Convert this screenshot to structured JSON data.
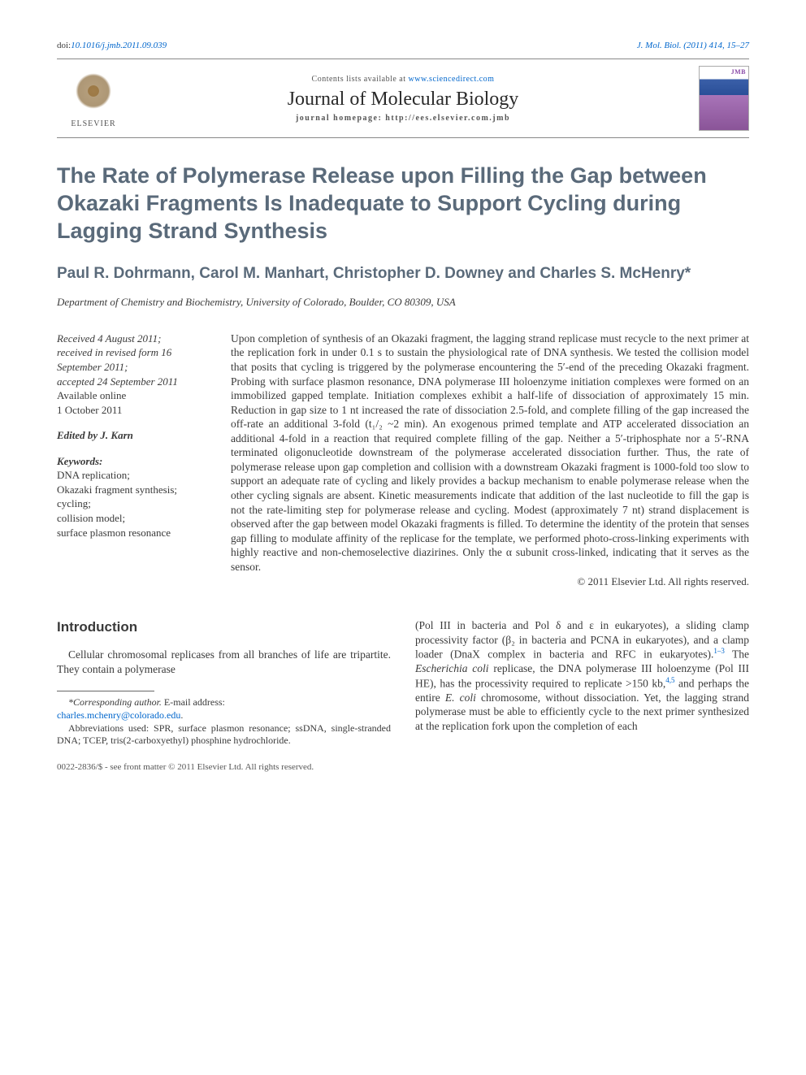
{
  "header": {
    "doi_prefix": "doi:",
    "doi": "10.1016/j.jmb.2011.09.039",
    "citation": "J. Mol. Biol. (2011) 414, 15–27",
    "contents_prefix": "Contents lists available at ",
    "sciencedirect": "www.sciencedirect.com",
    "journal_name": "Journal of Molecular Biology",
    "homepage_label": "journal homepage: http://ees.elsevier.com.jmb",
    "elsevier_label": "ELSEVIER",
    "jmb_label": "JMB"
  },
  "article": {
    "title": "The Rate of Polymerase Release upon Filling the Gap between Okazaki Fragments Is Inadequate to Support Cycling during Lagging Strand Synthesis",
    "authors": "Paul R. Dohrmann, Carol M. Manhart, Christopher D. Downey and Charles S. McHenry*",
    "affiliation": "Department of Chemistry and Biochemistry, University of Colorado, Boulder, CO 80309, USA"
  },
  "meta": {
    "received": "Received 4 August 2011;",
    "revised": "received in revised form 16 September 2011;",
    "accepted": "accepted 24 September 2011",
    "online_label": "Available online",
    "online_date": "1 October 2011",
    "edited_by": "Edited by J. Karn",
    "keywords_label": "Keywords:",
    "keywords": "DNA replication;\nOkazaki fragment synthesis;\ncycling;\ncollision model;\nsurface plasmon resonance"
  },
  "abstract": {
    "text": "Upon completion of synthesis of an Okazaki fragment, the lagging strand replicase must recycle to the next primer at the replication fork in under 0.1 s to sustain the physiological rate of DNA synthesis. We tested the collision model that posits that cycling is triggered by the polymerase encountering the 5′-end of the preceding Okazaki fragment. Probing with surface plasmon resonance, DNA polymerase III holoenzyme initiation complexes were formed on an immobilized gapped template. Initiation complexes exhibit a half-life of dissociation of approximately 15 min. Reduction in gap size to 1 nt increased the rate of dissociation 2.5-fold, and complete filling of the gap increased the off-rate an additional 3-fold (t₁/₂ ~2 min). An exogenous primed template and ATP accelerated dissociation an additional 4-fold in a reaction that required complete filling of the gap. Neither a 5′-triphosphate nor a 5′-RNA terminated oligonucleotide downstream of the polymerase accelerated dissociation further. Thus, the rate of polymerase release upon gap completion and collision with a downstream Okazaki fragment is 1000-fold too slow to support an adequate rate of cycling and likely provides a backup mechanism to enable polymerase release when the other cycling signals are absent. Kinetic measurements indicate that addition of the last nucleotide to fill the gap is not the rate-limiting step for polymerase release and cycling. Modest (approximately 7 nt) strand displacement is observed after the gap between model Okazaki fragments is filled. To determine the identity of the protein that senses gap filling to modulate affinity of the replicase for the template, we performed photo-cross-linking experiments with highly reactive and non-chemoselective diazirines. Only the α subunit cross-linked, indicating that it serves as the sensor.",
    "copyright": "© 2011 Elsevier Ltd. All rights reserved."
  },
  "intro": {
    "heading": "Introduction",
    "left_para": "Cellular chromosomal replicases from all branches of life are tripartite. They contain a polymerase",
    "right_para_1": "(Pol III in bacteria and Pol δ and ε in eukaryotes), a sliding clamp processivity factor (β₂ in bacteria and PCNA in eukaryotes), and a clamp loader (DnaX complex in bacteria and RFC in eukaryotes).",
    "right_cite_1": "1–3",
    "right_para_2": " The Escherichia coli replicase, the DNA polymerase III holoenzyme (Pol III HE), has the processivity required to replicate >150 kb,",
    "right_cite_2": "4,5",
    "right_para_3": " and perhaps the entire E. coli chromosome, without dissociation. Yet, the lagging strand polymerase must be able to efficiently cycle to the next primer synthesized at the replication fork upon the completion of each"
  },
  "footnotes": {
    "corresponding_label": "*Corresponding author.",
    "email_label": " E-mail address:",
    "email": "charles.mchenry@colorado.edu",
    "period": ".",
    "abbrev": "Abbreviations used: SPR, surface plasmon resonance; ssDNA, single-stranded DNA; TCEP, tris(2-carboxyethyl) phosphine hydrochloride."
  },
  "footer": {
    "line": "0022-2836/$ - see front matter © 2011 Elsevier Ltd. All rights reserved."
  }
}
